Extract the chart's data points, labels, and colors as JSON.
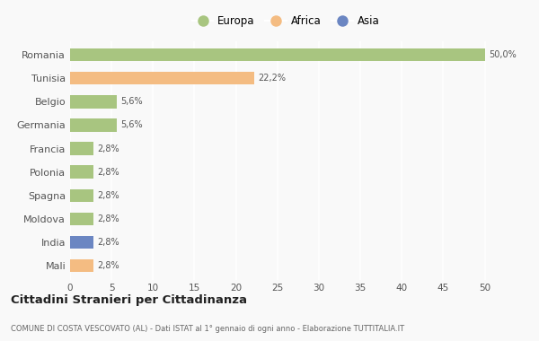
{
  "categories": [
    "Romania",
    "Tunisia",
    "Belgio",
    "Germania",
    "Francia",
    "Polonia",
    "Spagna",
    "Moldova",
    "India",
    "Mali"
  ],
  "values": [
    50.0,
    22.2,
    5.6,
    5.6,
    2.8,
    2.8,
    2.8,
    2.8,
    2.8,
    2.8
  ],
  "labels": [
    "50,0%",
    "22,2%",
    "5,6%",
    "5,6%",
    "2,8%",
    "2,8%",
    "2,8%",
    "2,8%",
    "2,8%",
    "2,8%"
  ],
  "colors": [
    "#a8c580",
    "#f4bc82",
    "#a8c580",
    "#a8c580",
    "#a8c580",
    "#a8c580",
    "#a8c580",
    "#a8c580",
    "#6b86c2",
    "#f4bc82"
  ],
  "legend_labels": [
    "Europa",
    "Africa",
    "Asia"
  ],
  "legend_colors": [
    "#a8c580",
    "#f4bc82",
    "#6b86c2"
  ],
  "xlim": [
    0,
    52
  ],
  "xticks": [
    0,
    5,
    10,
    15,
    20,
    25,
    30,
    35,
    40,
    45,
    50
  ],
  "title": "Cittadini Stranieri per Cittadinanza",
  "subtitle": "COMUNE DI COSTA VESCOVATO (AL) - Dati ISTAT al 1° gennaio di ogni anno - Elaborazione TUTTITALIA.IT",
  "background_color": "#f9f9f9",
  "grid_color": "#ffffff",
  "bar_height": 0.55
}
